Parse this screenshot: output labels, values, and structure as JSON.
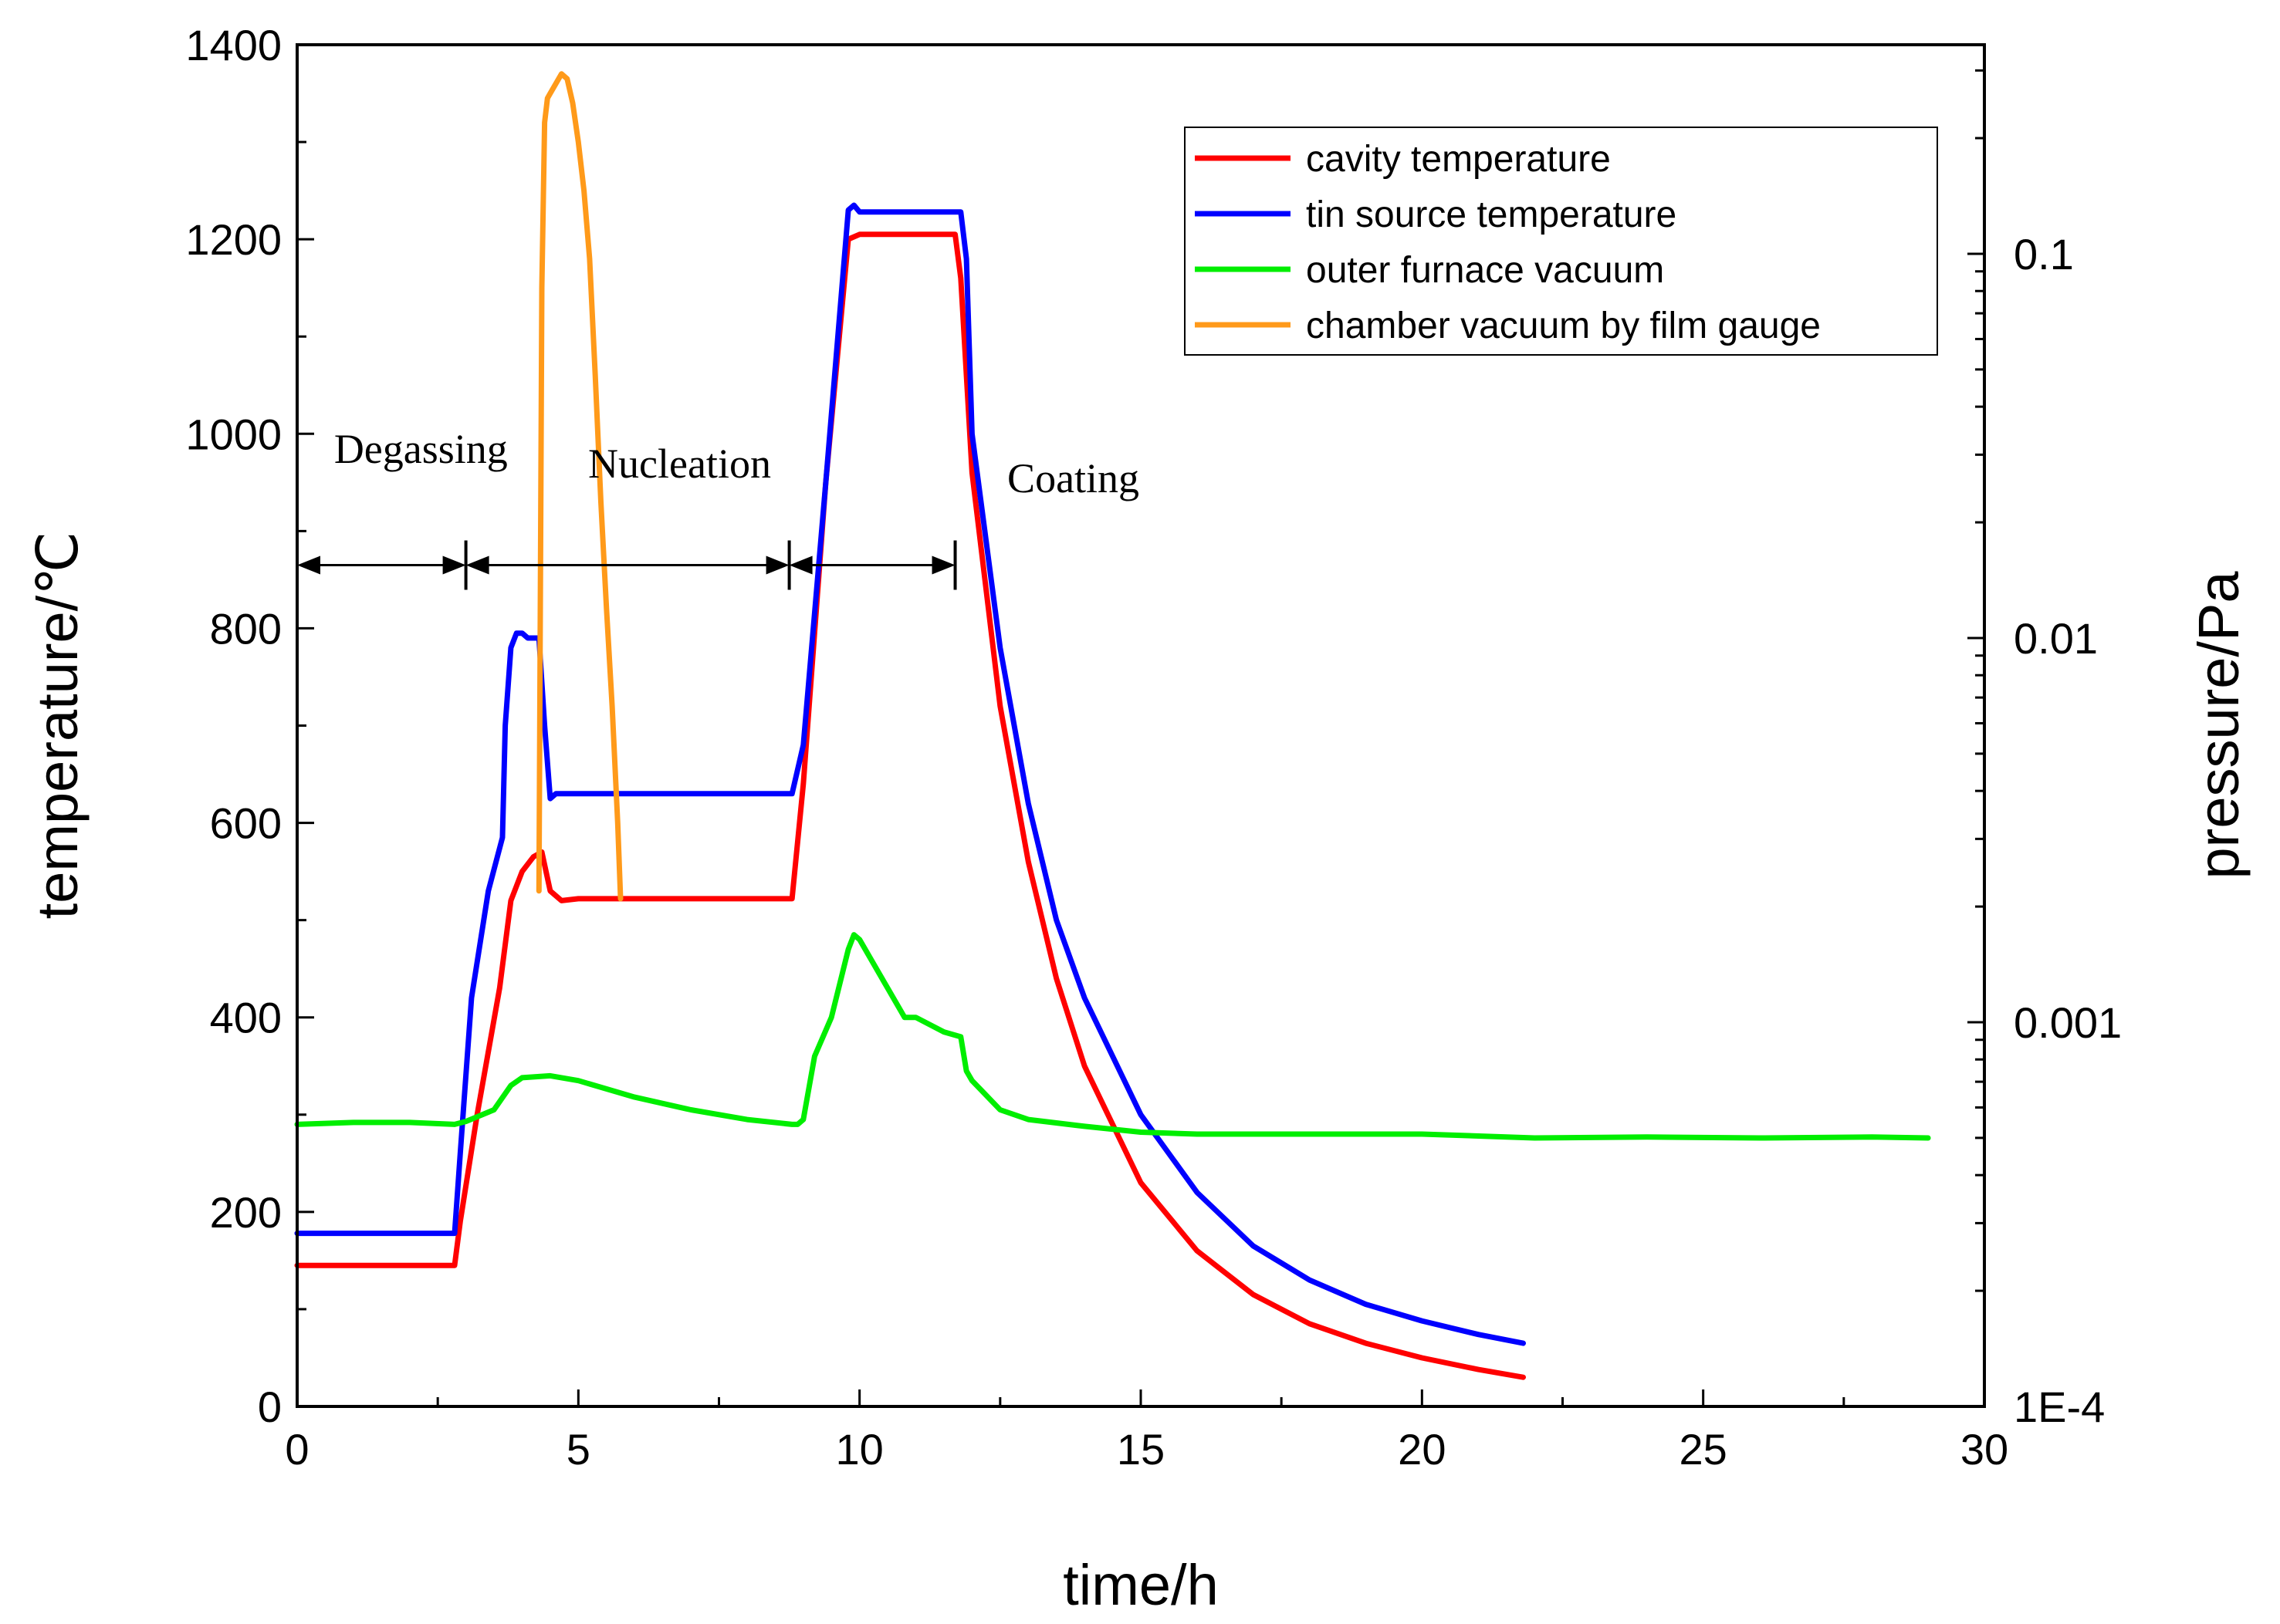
{
  "chart_data": {
    "type": "line",
    "title": "",
    "xlabel": "time/h",
    "ylabel": "temperature/℃",
    "y2label": "pressure/Pa",
    "xlim": [
      0,
      30
    ],
    "ylim": [
      0,
      1400
    ],
    "y2lim_log": [
      0.0001,
      0.35
    ],
    "x_ticks": [
      0,
      5,
      10,
      15,
      20,
      25,
      30
    ],
    "y_ticks": [
      0,
      200,
      400,
      600,
      800,
      1000,
      1200,
      1400
    ],
    "y2_ticks": [
      {
        "value": 0.0001,
        "label": "1E-4"
      },
      {
        "value": 0.001,
        "label": "0.001"
      },
      {
        "value": 0.01,
        "label": "0.01"
      },
      {
        "value": 0.1,
        "label": "0.1"
      }
    ],
    "legend_position": "top-right",
    "series": [
      {
        "name": "cavity temperature",
        "color": "#ff0000",
        "axis": "left",
        "x": [
          0,
          2.8,
          2.9,
          3.2,
          3.6,
          3.8,
          4.0,
          4.2,
          4.35,
          4.5,
          4.7,
          5,
          6,
          7,
          8,
          8.8,
          9.0,
          9.4,
          9.8,
          10.0,
          11.0,
          11.7,
          11.8,
          12.0,
          12.5,
          13.0,
          13.5,
          14.0,
          15.0,
          16.0,
          17.0,
          18.0,
          19.0,
          20.0,
          21.0,
          21.8
        ],
        "y": [
          145,
          145,
          190,
          300,
          430,
          520,
          550,
          565,
          570,
          530,
          520,
          522,
          522,
          522,
          522,
          522,
          640,
          950,
          1200,
          1205,
          1205,
          1205,
          1160,
          960,
          720,
          560,
          440,
          350,
          230,
          160,
          115,
          85,
          65,
          50,
          38,
          30
        ]
      },
      {
        "name": "tin source temperature",
        "color": "#0000ff",
        "axis": "left",
        "x": [
          0,
          2.8,
          2.9,
          3.1,
          3.4,
          3.65,
          3.7,
          3.8,
          3.9,
          4.0,
          4.1,
          4.3,
          4.4,
          4.5,
          4.6,
          4.7,
          5,
          6,
          7,
          8,
          8.8,
          9.0,
          9.4,
          9.8,
          9.9,
          10.0,
          11.0,
          11.8,
          11.9,
          12.0,
          12.5,
          13.0,
          13.5,
          14.0,
          15.0,
          16.0,
          17.0,
          18.0,
          19.0,
          20.0,
          21.0,
          21.8
        ],
        "y": [
          178,
          178,
          260,
          420,
          530,
          585,
          700,
          780,
          795,
          795,
          790,
          790,
          700,
          625,
          630,
          630,
          630,
          630,
          630,
          630,
          630,
          680,
          950,
          1230,
          1235,
          1228,
          1228,
          1228,
          1180,
          1000,
          780,
          620,
          500,
          420,
          300,
          220,
          165,
          130,
          105,
          88,
          74,
          65
        ]
      },
      {
        "name": "outer furnace vacuum",
        "color": "#00ee00",
        "axis": "left",
        "x": [
          0,
          1,
          2,
          2.8,
          3.0,
          3.5,
          3.8,
          4.0,
          4.5,
          5.0,
          6.0,
          7.0,
          8.0,
          8.8,
          8.9,
          9.0,
          9.2,
          9.5,
          9.8,
          9.9,
          10.0,
          10.4,
          10.5,
          10.8,
          11.0,
          11.5,
          11.8,
          11.9,
          12.0,
          12.5,
          13.0,
          14.0,
          15.0,
          16.0,
          18.0,
          20.0,
          22.0,
          24.0,
          26.0,
          28.0,
          29.0
        ],
        "y": [
          290,
          292,
          292,
          290,
          293,
          305,
          330,
          338,
          340,
          335,
          318,
          305,
          295,
          290,
          290,
          295,
          360,
          400,
          470,
          485,
          480,
          440,
          430,
          400,
          400,
          385,
          380,
          345,
          335,
          305,
          295,
          288,
          282,
          280,
          280,
          280,
          276,
          277,
          276,
          277,
          276
        ]
      },
      {
        "name": "chamber vacuum by film gauge",
        "color": "#ff9a1a",
        "axis": "left",
        "x": [
          4.3,
          4.35,
          4.4,
          4.45,
          4.5,
          4.6,
          4.7,
          4.8,
          4.9,
          5.0,
          5.1,
          5.2,
          5.3,
          5.4,
          5.5,
          5.6,
          5.7,
          5.75
        ],
        "y": [
          530,
          1150,
          1320,
          1345,
          1350,
          1360,
          1370,
          1365,
          1340,
          1300,
          1250,
          1180,
          1060,
          930,
          820,
          720,
          600,
          522
        ]
      }
    ],
    "annotations": [
      {
        "text": "Degassing",
        "x": 2.2,
        "y": 970
      },
      {
        "text": "Nucleation",
        "x": 6.8,
        "y": 955
      },
      {
        "text": "Coating",
        "x": 13.8,
        "y": 940
      }
    ],
    "phase_arrows": [
      {
        "from": 0.0,
        "to": 3.0,
        "y": 865
      },
      {
        "from": 3.0,
        "to": 8.75,
        "y": 865
      },
      {
        "from": 8.75,
        "to": 11.7,
        "y": 865
      }
    ]
  }
}
